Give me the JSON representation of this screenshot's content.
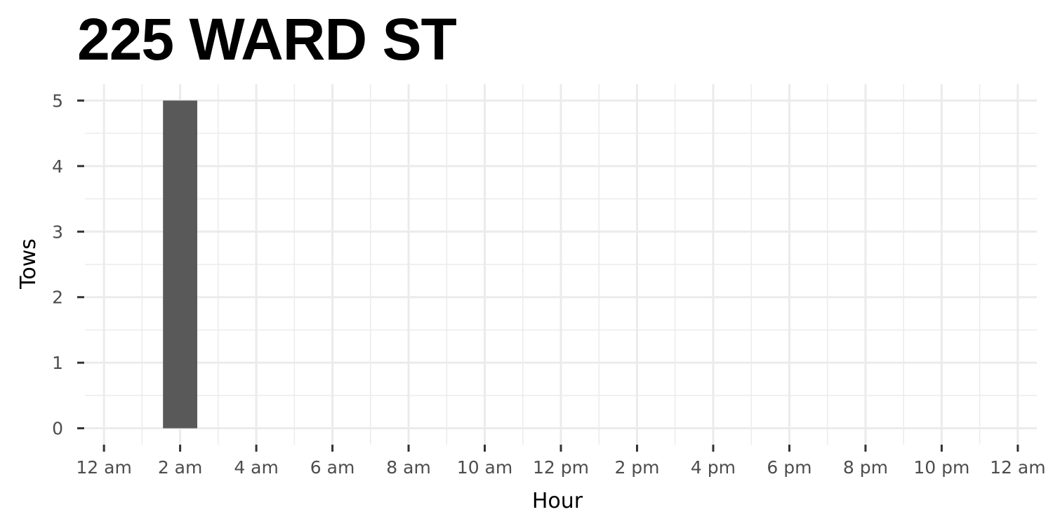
{
  "chart_data": {
    "type": "bar",
    "title": "225 WARD ST",
    "xlabel": "Hour",
    "ylabel": "Tows",
    "x_ticks": [
      "12 am",
      "2 am",
      "4 am",
      "6 am",
      "8 am",
      "10 am",
      "12 pm",
      "2 pm",
      "4 pm",
      "6 pm",
      "8 pm",
      "10 pm",
      "12 am"
    ],
    "y_ticks": [
      "0",
      "1",
      "2",
      "3",
      "4",
      "5"
    ],
    "xlim": [
      -0.5,
      24.5
    ],
    "ylim": [
      -0.25,
      5.25
    ],
    "series": [
      {
        "x": [
          2
        ],
        "values": [
          5
        ]
      }
    ],
    "bar_color": "#595959",
    "grid": true,
    "grid_color": "#ebebeb",
    "legend": "none"
  }
}
